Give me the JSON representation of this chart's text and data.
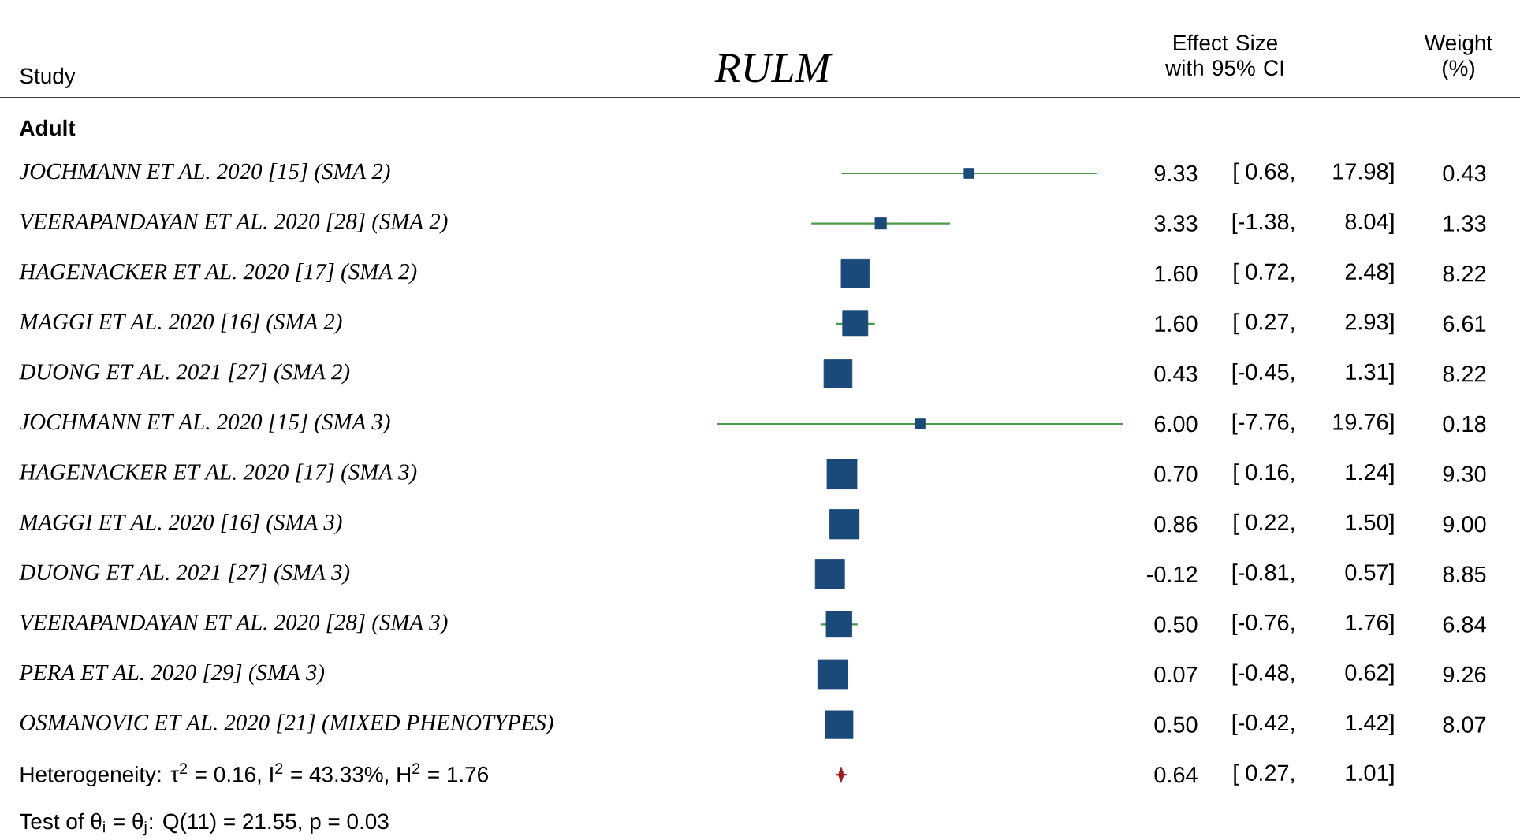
{
  "chart_data": {
    "type": "other",
    "title": "RULM",
    "categories": [
      "JOCHMANN ET AL. 2020 [15] (SMA 2)",
      "VEERAPANDAYAN ET AL. 2020 [28] (SMA 2)",
      "HAGENACKER ET AL. 2020 [17] (SMA 2)",
      "MAGGI ET AL. 2020 [16] (SMA 2)",
      "DUONG ET AL. 2021 [27] (SMA 2)",
      "JOCHMANN ET AL. 2020 [15] (SMA 3)",
      "HAGENACKER ET AL. 2020 [17] (SMA 3)",
      "MAGGI ET AL. 2020 [16] (SMA 3)",
      "DUONG ET AL. 2021 [27] (SMA 3)",
      "VEERAPANDAYAN ET AL. 2020 [28] (SMA 3)",
      "PERA ET AL. 2020 [29] (SMA 3)",
      "OSMANOVIC ET AL. 2020 [21] (MIXED PHENOTYPES)",
      "Heterogeneity: τ$^{2}$ = 0.16, I$^{2}$ = 43.33%, H$^{2}$ = 1.76"
    ],
    "series": [
      {
        "marker": "square",
        "color": "#1b4a7a",
        "values": [
          9.33,
          3.33,
          1.6,
          1.6,
          0.43,
          6.0,
          0.7,
          0.86,
          -0.12,
          0.5,
          0.07,
          0.5,
          null
        ],
        "value_labels": [
          "9.33",
          "3.33",
          "1.60",
          "1.60",
          "0.43",
          "6.00",
          "0.70",
          "0.86",
          "-0.12",
          "0.50",
          "0.07",
          "0.50",
          null
        ]
      },
      {
        "marker": "diamond",
        "color": "#9b1c1c",
        "values": [
          null,
          null,
          null,
          null,
          null,
          null,
          null,
          null,
          null,
          null,
          null,
          null,
          0.64
        ],
        "value_labels": [
          null,
          null,
          null,
          null,
          null,
          null,
          null,
          null,
          null,
          null,
          null,
          null,
          "0.64"
        ]
      },
      {
        "color": "#4a9a45",
        "values": [
          0.68,
          -1.38,
          0.72,
          0.27,
          -0.45,
          -7.76,
          0.16,
          0.22,
          -0.81,
          -0.76,
          -0.48,
          -0.42,
          0.27
        ],
        "value_labels": [
          "[ 0.68,",
          "[-1.38,",
          "[ 0.72,",
          "[ 0.27,",
          "[-0.45,",
          "[-7.76,",
          "[ 0.16,",
          "[ 0.22,",
          "[-0.81,",
          "[-0.76,",
          "[-0.48,",
          "[-0.42,",
          "[ 0.27,"
        ]
      },
      {
        "color": "#4a9a45",
        "values": [
          17.98,
          8.04,
          2.48,
          2.93,
          1.31,
          19.76,
          1.24,
          1.5,
          0.57,
          1.76,
          0.62,
          1.42,
          1.01
        ],
        "value_labels": [
          "17.98]",
          "8.04]",
          "2.48]",
          "2.93]",
          "1.31]",
          "19.76]",
          "1.24]",
          "1.50]",
          "0.57]",
          "1.76]",
          "0.62]",
          "1.42]",
          "1.01]"
        ]
      },
      {
        "values": [
          0.43,
          1.33,
          8.22,
          6.61,
          8.22,
          0.18,
          9.3,
          9.0,
          8.85,
          6.84,
          9.26,
          8.07,
          null
        ],
        "value_labels": [
          "0.43",
          "1.33",
          "8.22",
          "6.61",
          "8.22",
          "0.18",
          "9.30",
          "9.00",
          "8.85",
          "6.84",
          "9.26",
          "8.07",
          null
        ]
      }
    ],
    "annotations": [
      "Study",
      "Effect Size with 95% CI",
      "Weight (%)",
      "Adult",
      "Test of θ$_{i}$ = θ$_{j}$: Q(11) = 21.55, p = 0.03"
    ]
  }
}
